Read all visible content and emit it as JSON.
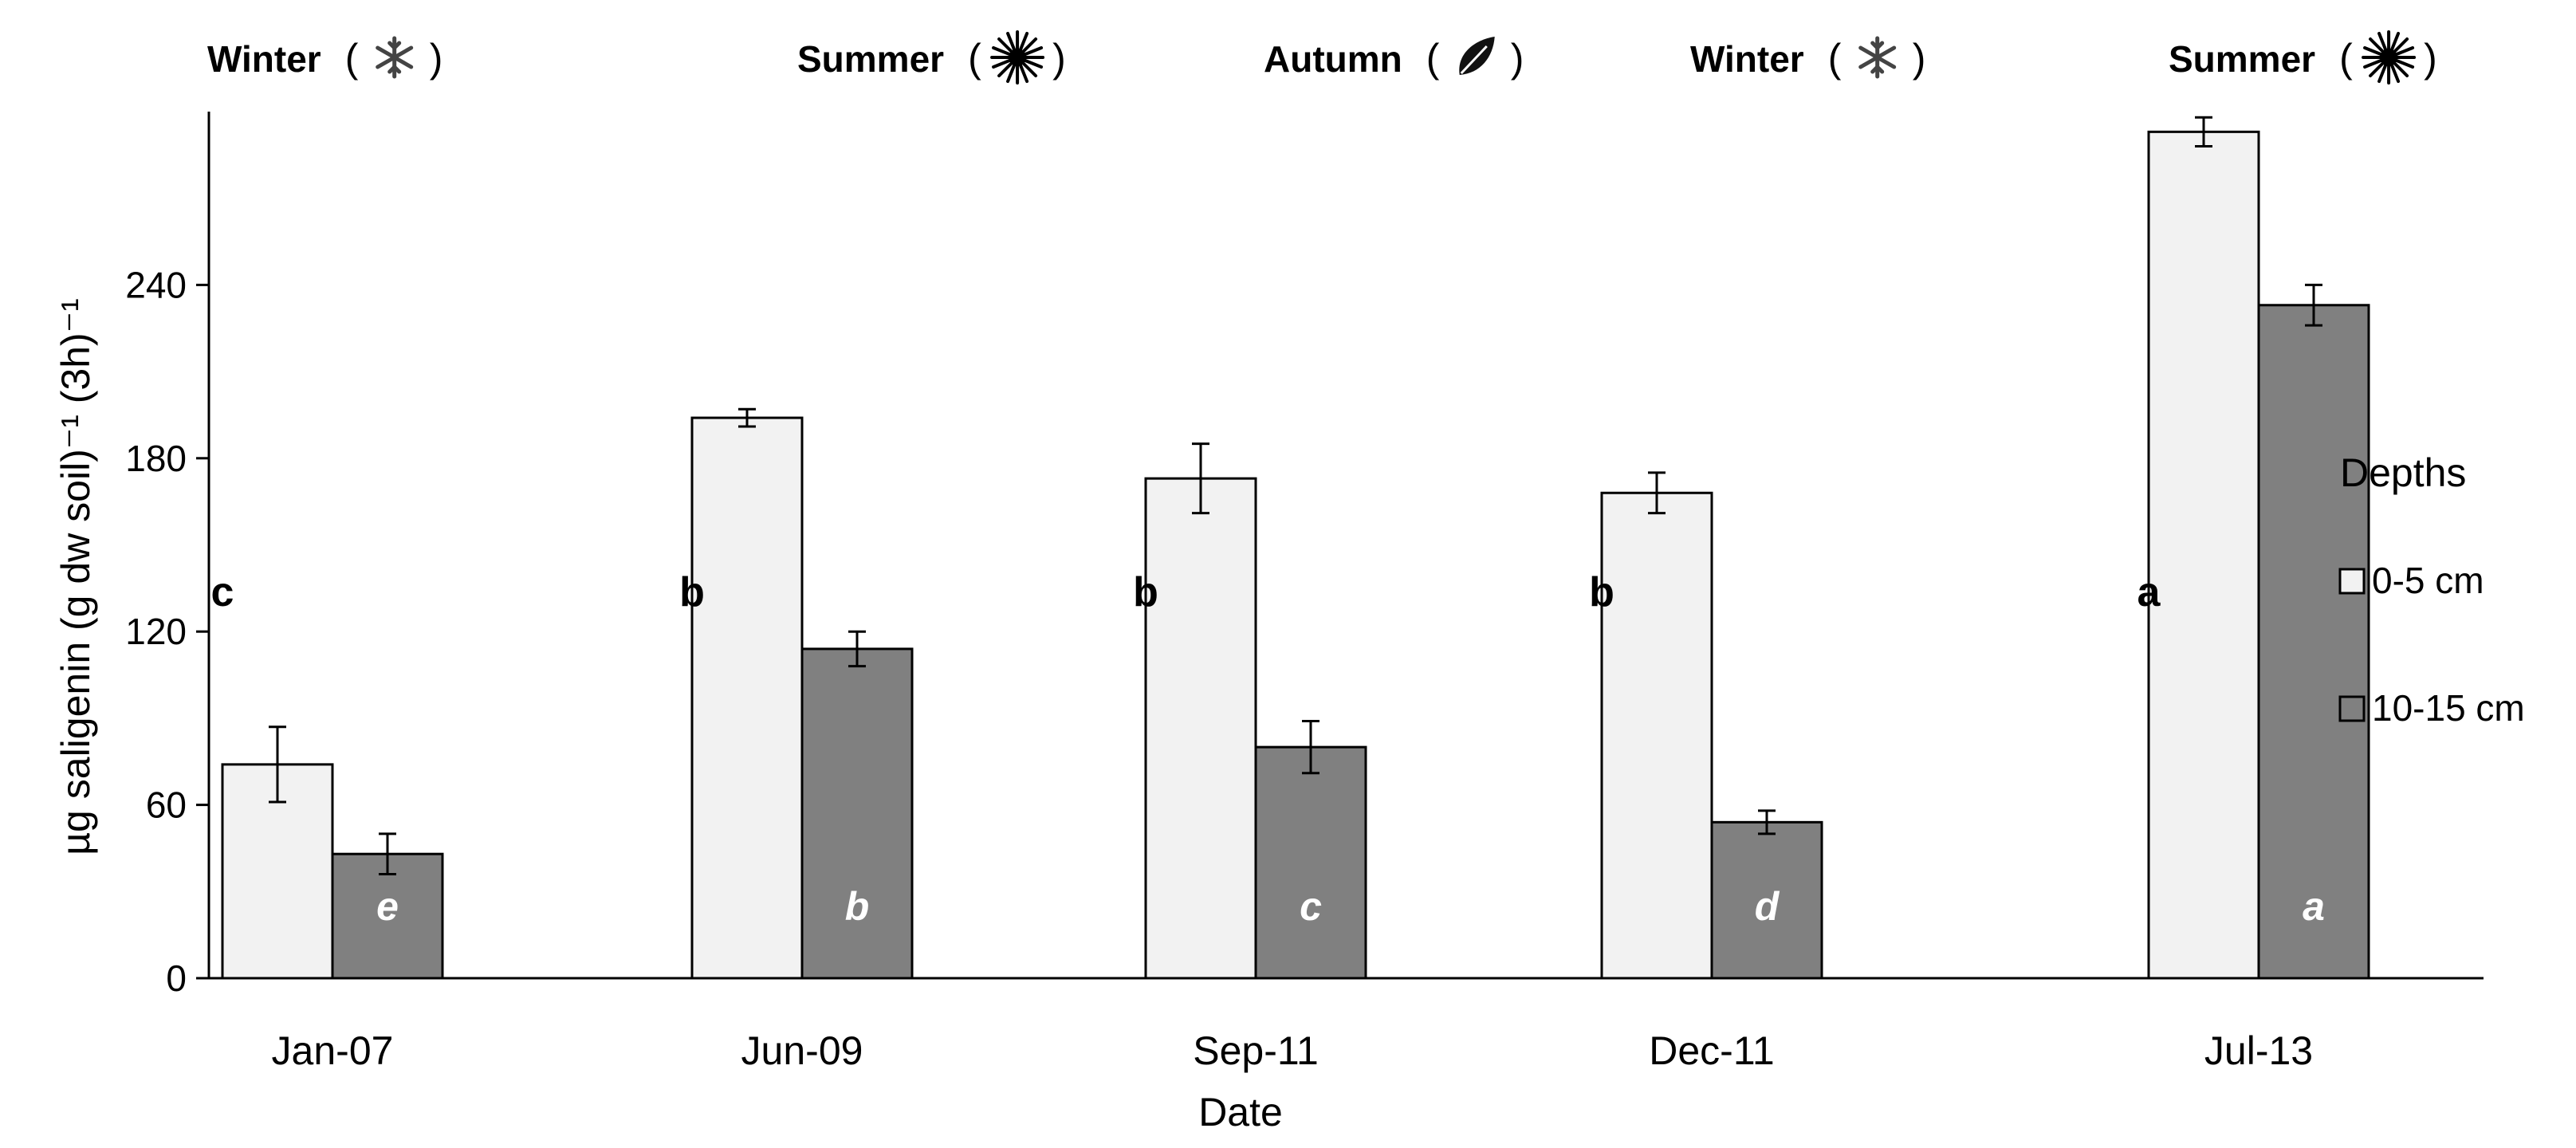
{
  "chart_data": {
    "type": "bar",
    "xlabel": "Date",
    "ylabel": "µg saligenin (g dw soil)⁻¹ (3h)⁻¹",
    "ylim": [
      0,
      300
    ],
    "yticks": [
      "0",
      "60",
      "120",
      "180",
      "240"
    ],
    "grid": false,
    "legend": {
      "title": "Depths",
      "position": "right"
    },
    "categories": [
      "Jan-07",
      "Jun-09",
      "Sep-11",
      "Dec-11",
      "Jul-13"
    ],
    "seasons": [
      {
        "label": "Winter",
        "icon": "snowflake-icon"
      },
      {
        "label": "Summer",
        "icon": "sun-icon"
      },
      {
        "label": "Autumn",
        "icon": "leaf-icon"
      },
      {
        "label": "Winter",
        "icon": "snowflake-icon"
      },
      {
        "label": "Summer",
        "icon": "sun-icon"
      }
    ],
    "series": [
      {
        "name": "0-5 cm",
        "color": "#f2f2f2",
        "values": [
          74,
          194,
          173,
          168,
          293
        ],
        "errors": [
          13,
          3,
          12,
          7,
          5
        ],
        "significance": [
          "c",
          "b",
          "b",
          "b",
          "a"
        ]
      },
      {
        "name": "10-15 cm",
        "color": "#808080",
        "values": [
          43,
          114,
          80,
          54,
          233
        ],
        "errors": [
          7,
          6,
          9,
          4,
          7
        ],
        "significance": [
          "e",
          "b",
          "c",
          "d",
          "a"
        ]
      }
    ]
  }
}
